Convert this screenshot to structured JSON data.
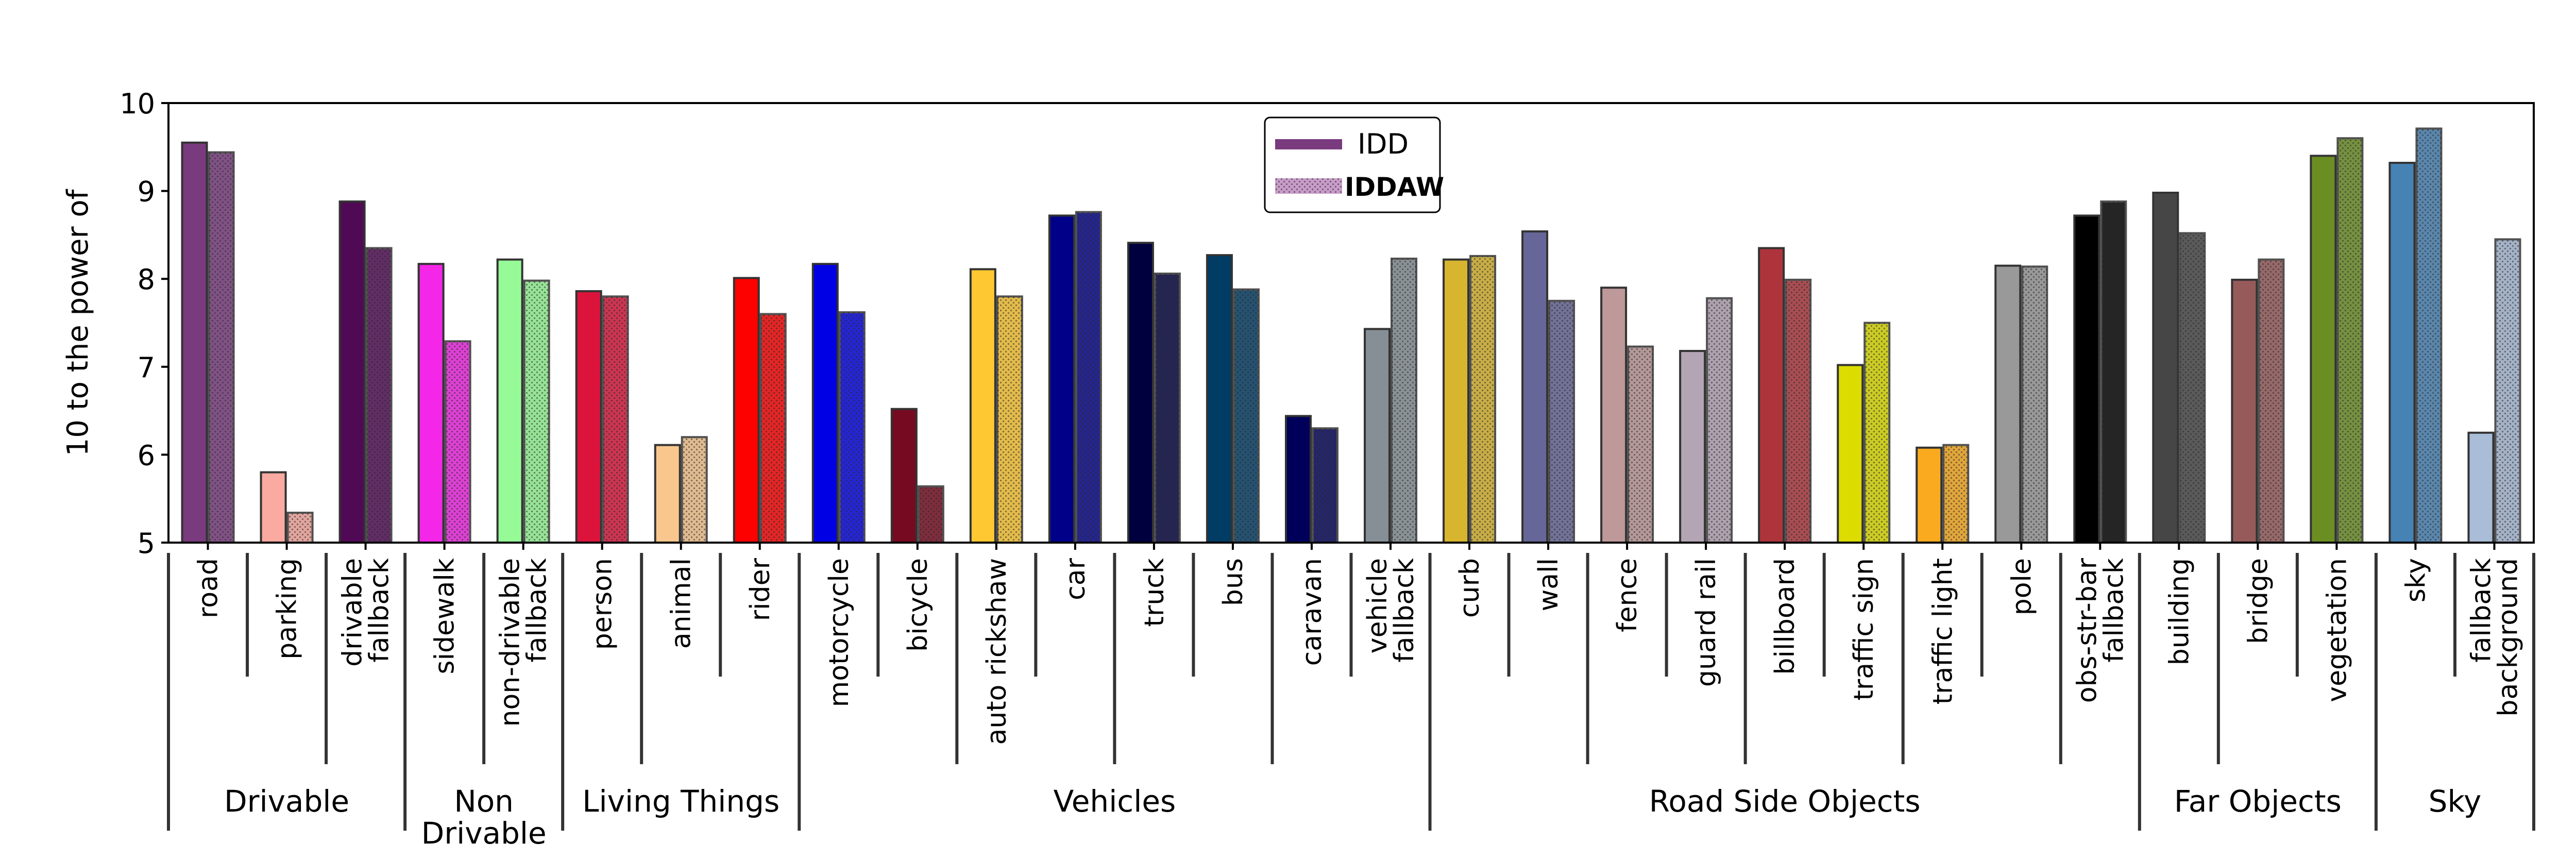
{
  "chart_data": {
    "type": "bar",
    "title": "",
    "xlabel": "",
    "ylabel": "10 to the power of",
    "ylim": [
      5,
      10
    ],
    "yticks": [
      "5",
      "6",
      "7",
      "8",
      "9",
      "10"
    ],
    "grid": false,
    "legend": {
      "placement": "top-center",
      "entries": [
        {
          "label": "IDD",
          "color": "#7a3a7e",
          "hatch": false
        },
        {
          "label": "IDDAW",
          "color": "#c89cc8",
          "hatch": true
        }
      ]
    },
    "series": [
      {
        "name": "IDD",
        "values": [
          9.55,
          5.8,
          8.88,
          8.17,
          8.22,
          7.86,
          6.11,
          8.01,
          8.17,
          6.52,
          8.11,
          8.72,
          8.41,
          8.27,
          6.44,
          7.43,
          8.22,
          8.54,
          7.9,
          7.18,
          8.35,
          7.02,
          6.08,
          8.15,
          8.72,
          8.98,
          7.99,
          9.4,
          9.32,
          6.25
        ]
      },
      {
        "name": "IDDAW",
        "values": [
          9.44,
          5.34,
          8.35,
          7.29,
          7.98,
          7.8,
          6.2,
          7.6,
          7.62,
          5.64,
          7.8,
          8.76,
          8.06,
          7.88,
          6.3,
          8.23,
          8.26,
          7.75,
          7.23,
          7.78,
          7.99,
          7.5,
          6.11,
          8.14,
          8.88,
          8.52,
          8.22,
          9.6,
          9.71,
          8.45
        ]
      }
    ],
    "categories": [
      {
        "label": "road",
        "color": "#7a3a7e"
      },
      {
        "label": "parking",
        "color": "#faaaa0"
      },
      {
        "label": "drivable\nfallback",
        "color": "#500a55"
      },
      {
        "label": "sidewalk",
        "color": "#f426e8"
      },
      {
        "label": "non-drivable\nfallback",
        "color": "#96fb96"
      },
      {
        "label": "person",
        "color": "#dc143c"
      },
      {
        "label": "animal",
        "color": "#f9c78d"
      },
      {
        "label": "rider",
        "color": "#fd0000"
      },
      {
        "label": "motorcycle",
        "color": "#0000e4"
      },
      {
        "label": "bicycle",
        "color": "#760a20"
      },
      {
        "label": "auto rickshaw",
        "color": "#fdc831"
      },
      {
        "label": "car",
        "color": "#000089"
      },
      {
        "label": "truck",
        "color": "#00003f"
      },
      {
        "label": "bus",
        "color": "#003c64"
      },
      {
        "label": "caravan",
        "color": "#00005a"
      },
      {
        "label": "vehicle\nfallback",
        "color": "#868f95"
      },
      {
        "label": "curb",
        "color": "#d8b52e"
      },
      {
        "label": "wall",
        "color": "#666699"
      },
      {
        "label": "fence",
        "color": "#be9999"
      },
      {
        "label": "guard rail",
        "color": "#b4a5b4"
      },
      {
        "label": "billboard",
        "color": "#ae343c"
      },
      {
        "label": "traffic sign",
        "color": "#dcdc00"
      },
      {
        "label": "traffic light",
        "color": "#faaa1e"
      },
      {
        "label": "pole",
        "color": "#999999"
      },
      {
        "label": "obs-str-bar\nfallback",
        "color": "#000000"
      },
      {
        "label": "building",
        "color": "#464646"
      },
      {
        "label": "bridge",
        "color": "#965a5a"
      },
      {
        "label": "vegetation",
        "color": "#6b8e23"
      },
      {
        "label": "sky",
        "color": "#4682b4"
      },
      {
        "label": "fallback\nbackground",
        "color": "#a9bcd8"
      }
    ],
    "groups": [
      {
        "label": "Drivable",
        "start": 0,
        "end": 2
      },
      {
        "label": "Non\nDrivable",
        "start": 3,
        "end": 4
      },
      {
        "label": "Living Things",
        "start": 5,
        "end": 7
      },
      {
        "label": "Vehicles",
        "start": 8,
        "end": 15
      },
      {
        "label": "Road Side Objects",
        "start": 16,
        "end": 24
      },
      {
        "label": "Far Objects",
        "start": 25,
        "end": 27
      },
      {
        "label": "Sky",
        "start": 28,
        "end": 29
      }
    ]
  }
}
